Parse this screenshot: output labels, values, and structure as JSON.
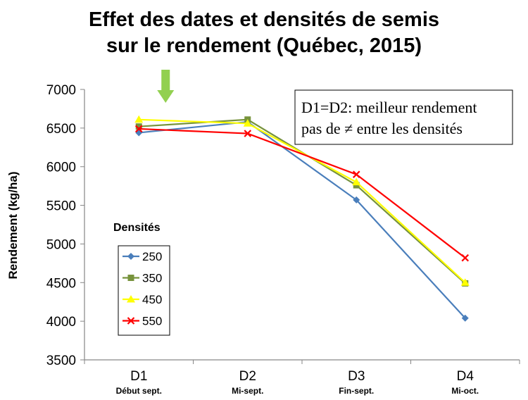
{
  "chart_data": {
    "type": "line",
    "title_lines": [
      "Effet des dates et densités de semis",
      "sur le rendement (Québec, 2015)"
    ],
    "ylabel": "Rendement (kg/ha)",
    "xlabel": "",
    "ylim": [
      3500,
      7000
    ],
    "yticks": [
      3500,
      4000,
      4500,
      5000,
      5500,
      6000,
      6500,
      7000
    ],
    "categories": [
      "D1",
      "D2",
      "D3",
      "D4"
    ],
    "category_sublabels": [
      "Début sept.",
      "Mi-sept.",
      "Fin-sept.",
      "Mi-oct."
    ],
    "legend_title": "Densités",
    "legend_position": "left",
    "grid": false,
    "series": [
      {
        "name": "250",
        "color": "#4a7ebb",
        "marker": "diamond",
        "values": [
          6440,
          6580,
          5570,
          4040
        ]
      },
      {
        "name": "350",
        "color": "#77933c",
        "marker": "square",
        "values": [
          6520,
          6610,
          5760,
          4490
        ]
      },
      {
        "name": "450",
        "color": "#ffff00",
        "marker": "triangle",
        "values": [
          6610,
          6560,
          5800,
          4500
        ]
      },
      {
        "name": "550",
        "color": "#ff0000",
        "marker": "x",
        "values": [
          6490,
          6430,
          5900,
          4820
        ]
      }
    ],
    "annotation_lines": [
      "D1=D2: meilleur rendement",
      " pas de ≠ entre les densités"
    ],
    "arrow_color": "#92d050",
    "arrow_category": "D1"
  }
}
